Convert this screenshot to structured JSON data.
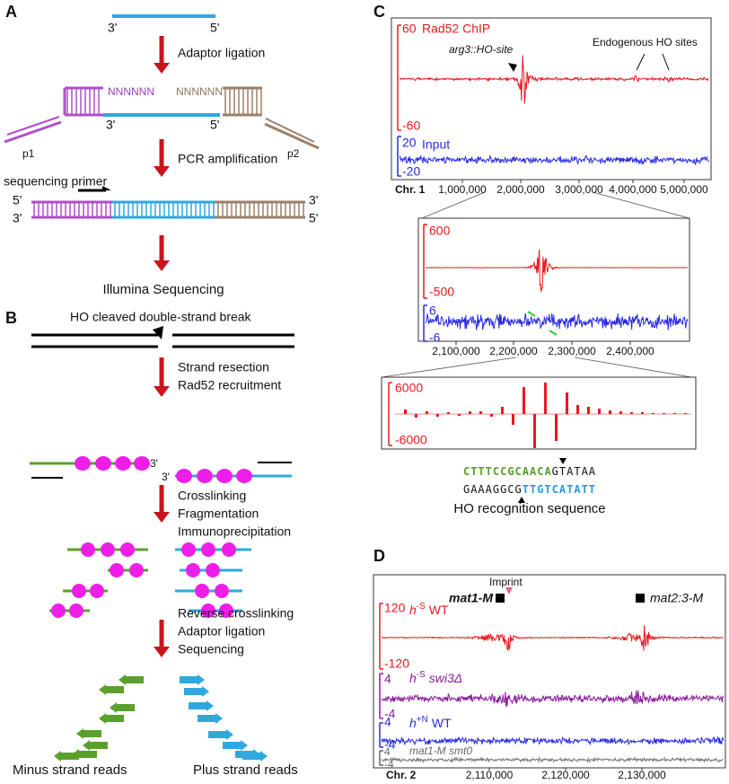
{
  "panel_a": {
    "label": "A",
    "top_3": "3'",
    "top_5": "5'",
    "step1": "Adaptor ligation",
    "n_left": "NNNNNN",
    "n_right": "NNNNNN",
    "ins_3": "3'",
    "ins_5": "5'",
    "p1": "p1",
    "p2": "p2",
    "step2": "PCR amplification",
    "seq_primer": "sequencing primer",
    "left_5": "5'",
    "left_3": "3'",
    "right_3": "3'",
    "right_5": "5'",
    "step3": "Illumina Sequencing"
  },
  "panel_b": {
    "label": "B",
    "title": "HO cleaved double-strand break",
    "step1": [
      "Strand resection",
      "Rad52 recruitment"
    ],
    "end_left": "3'",
    "end_right": "3'",
    "step2": [
      "Crosslinking",
      "Fragmentation",
      "Immunoprecipitation"
    ],
    "step3": [
      "Reverse crosslinking",
      "Adaptor ligation",
      "Sequencing"
    ],
    "minus": "Minus strand reads",
    "plus": "Plus strand reads"
  },
  "panel_c": {
    "label": "C",
    "track1": {
      "name": "Rad52 ChIP",
      "ymax": "60",
      "ymin": "-60"
    },
    "annot_site": "arg3::HO-site",
    "annot_endo": "Endogenous HO sites",
    "track2": {
      "name": "Input",
      "ymax": "20",
      "ymin": "-20"
    },
    "chrom": "Chr. 1",
    "xticks": [
      "1,000,000",
      "2,000,000",
      "3,000,000",
      "4,000,000",
      "5,000,000"
    ],
    "zoom1": {
      "ymax": "600",
      "ymin": "-500",
      "input_max": "6",
      "input_min": "-6",
      "xticks": [
        "2,100,000",
        "2,200,000",
        "2,300,000",
        "2,400,000"
      ]
    },
    "zoom2": {
      "ymax": "6000",
      "ymin": "-6000"
    },
    "seq_top": {
      "green": "CTTTCCGCAACA",
      "black": "GTATAA"
    },
    "seq_bottom": {
      "black": "GAAAGGCG",
      "blue": "TTGTCATATT"
    },
    "seq_caption": "HO recognition sequence"
  },
  "panel_d": {
    "label": "D",
    "imprint": "Imprint",
    "mat1": "mat1-M",
    "mat2": "mat2:3-M",
    "tracks": [
      {
        "base": "h",
        "sup": "-S",
        "rest": "WT",
        "ymax": "120",
        "ymin": "-120"
      },
      {
        "base": "h",
        "sup": "-S",
        "rest": "swi3Δ",
        "ymax": "4",
        "ymin": "-4"
      },
      {
        "base": "h",
        "sup": "+N",
        "rest": "WT",
        "ymax": "4",
        "ymin": "-4"
      },
      {
        "name": "mat1-M smt0",
        "ymax": "4",
        "ymin": "-4"
      }
    ],
    "chrom": "Chr. 2",
    "xticks": [
      "2,110,000",
      "2,120,000",
      "2,130,000"
    ]
  }
}
